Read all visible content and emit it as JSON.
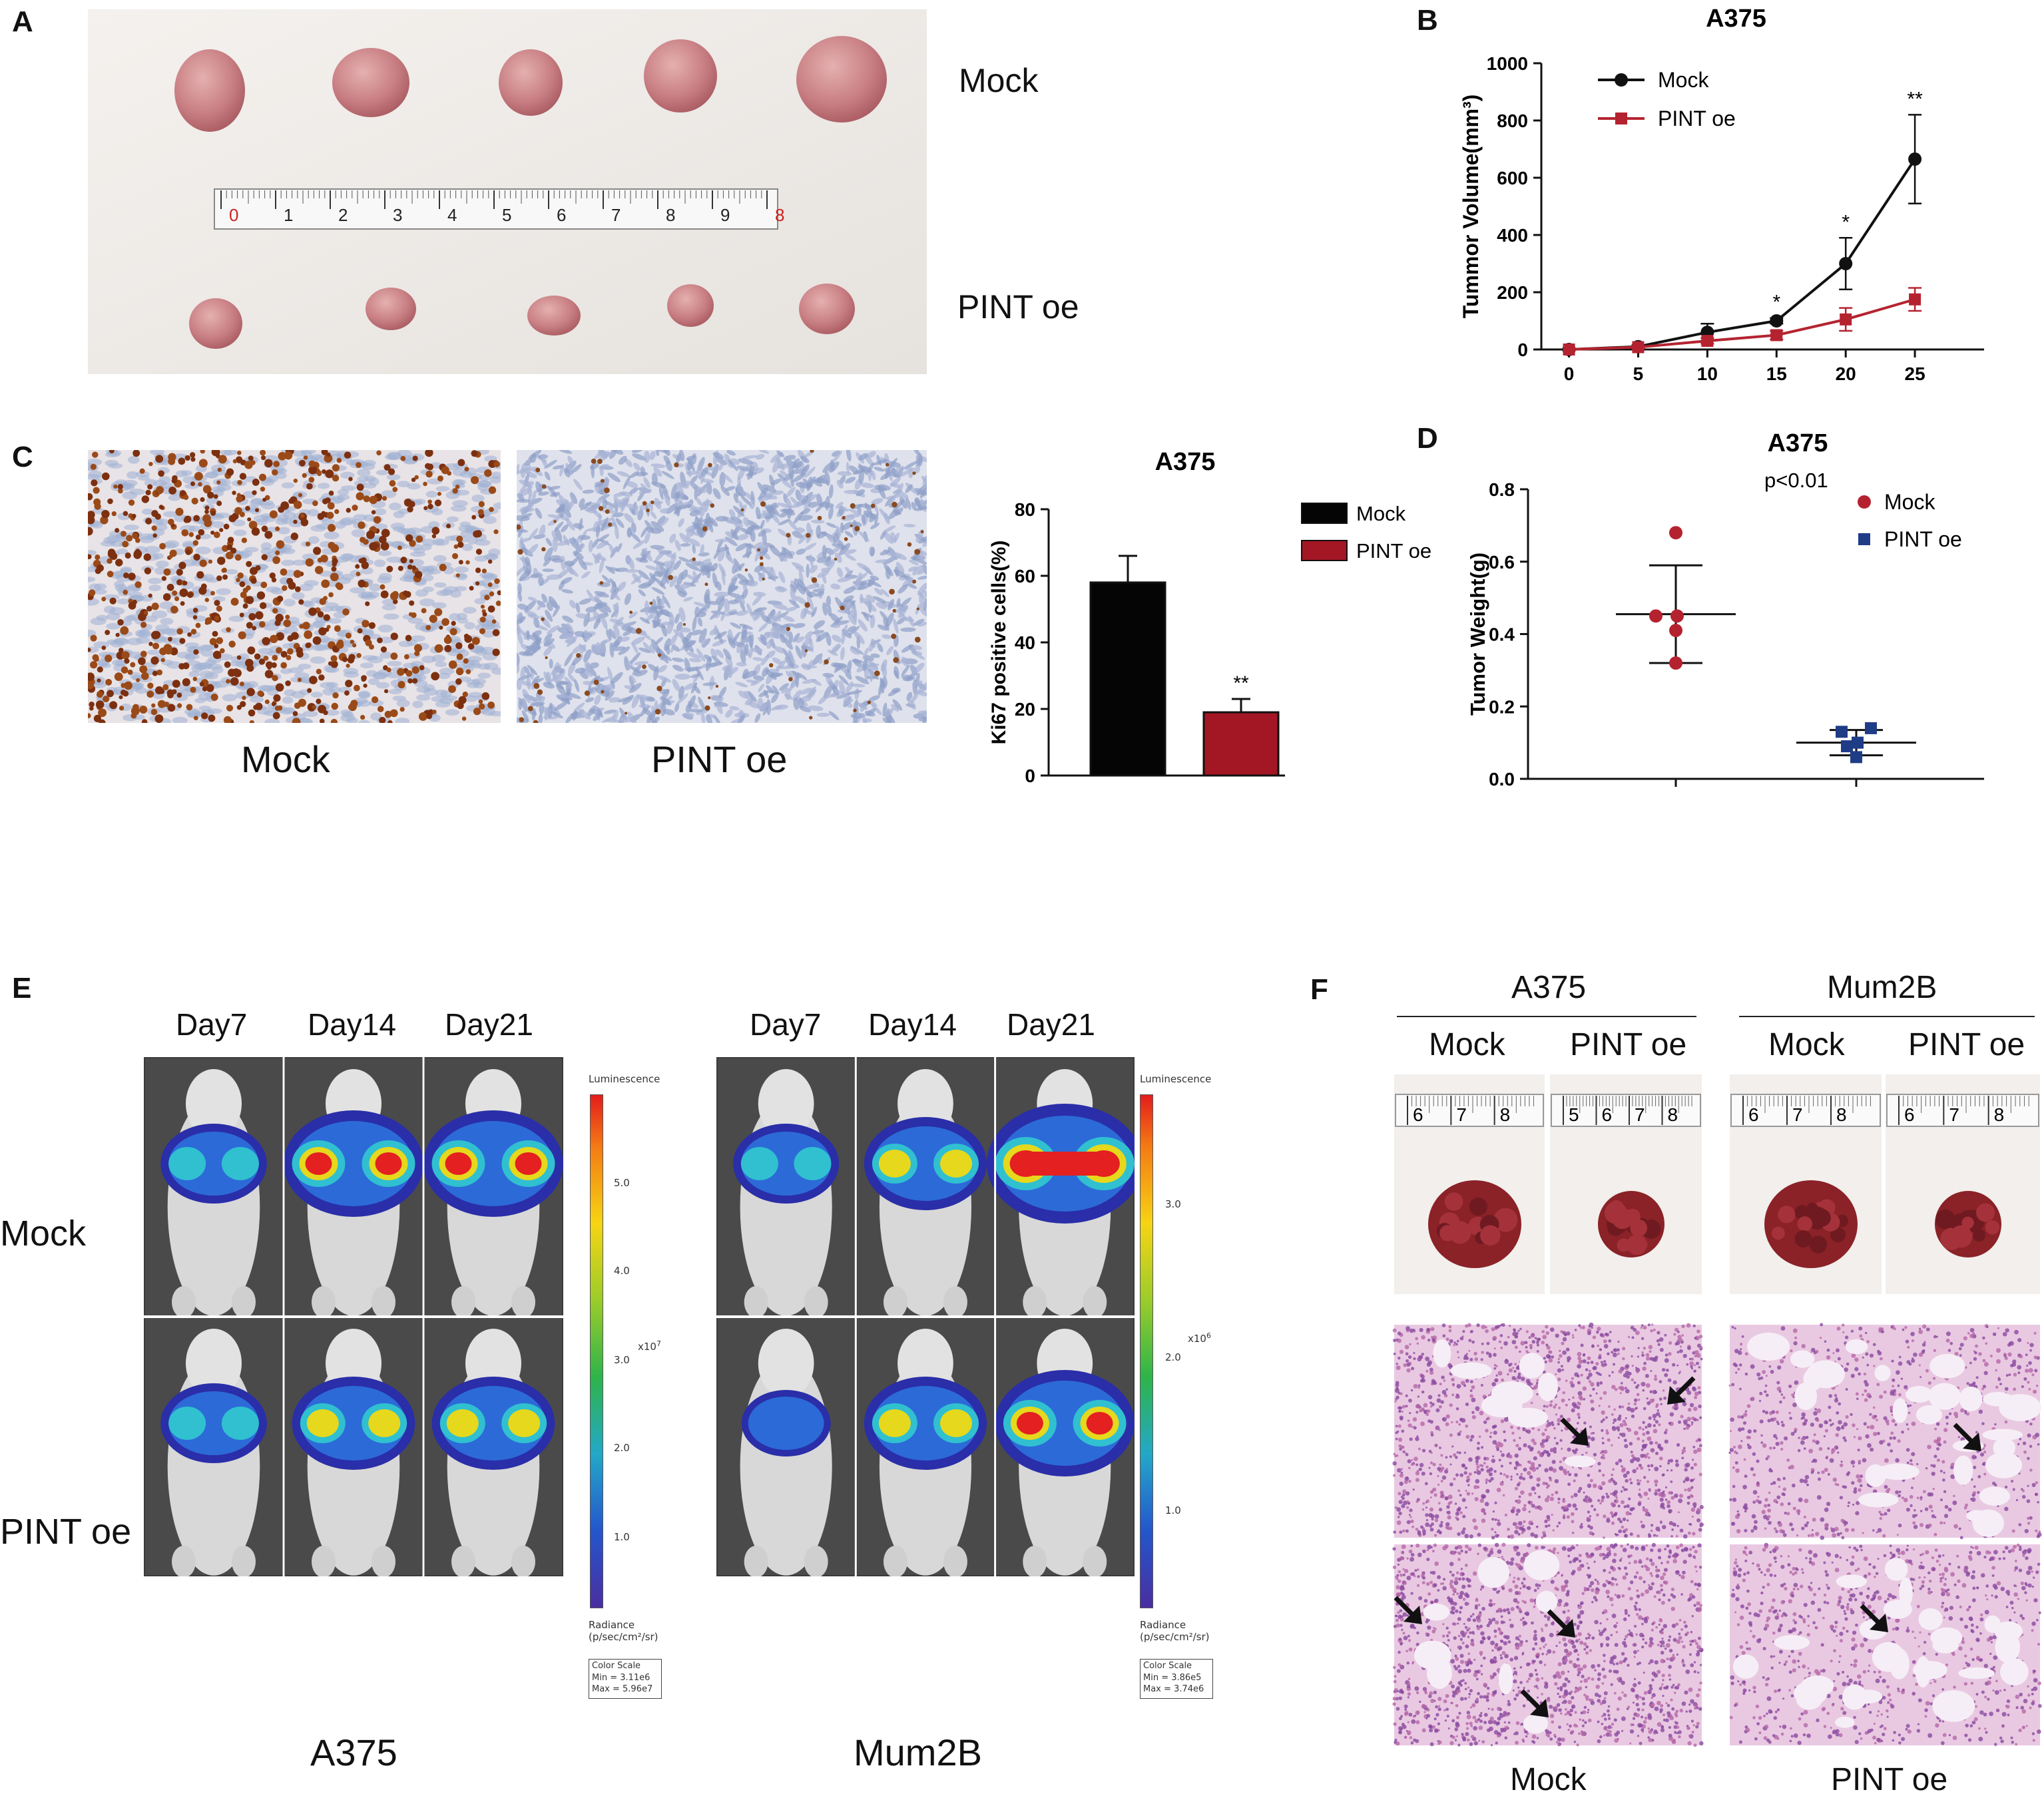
{
  "panels": {
    "A": {
      "label": "A",
      "row_labels": [
        "Mock",
        "PINT oe"
      ],
      "ruler_ticks": [
        "0",
        "1",
        "2",
        "3",
        "4",
        "5",
        "6",
        "7",
        "8",
        "9",
        "8"
      ]
    },
    "B": {
      "label": "B"
    },
    "C": {
      "label": "C",
      "captions": [
        "Mock",
        "PINT oe"
      ]
    },
    "D": {
      "label": "D",
      "pvalue": "p<0.01"
    },
    "E": {
      "label": "E",
      "groups": [
        {
          "name": "A375",
          "days": [
            "Day7",
            "Day14",
            "Day21"
          ],
          "colorbar": {
            "title": "Luminescence",
            "ticks": [
              "5.0",
              "4.0",
              "3.0",
              "2.0",
              "1.0"
            ],
            "exponent": "x10",
            "exp_power": "7",
            "units_line1": "Radiance",
            "units_line2": "(p/sec/cm²/sr)",
            "scale_title": "Color Scale",
            "scale_min": "Min = 3.11e6",
            "scale_max": "Max = 5.96e7"
          }
        },
        {
          "name": "Mum2B",
          "days": [
            "Day7",
            "Day14",
            "Day21"
          ],
          "colorbar": {
            "title": "Luminescence",
            "ticks": [
              "3.0",
              "2.0",
              "1.0"
            ],
            "exponent": "x10",
            "exp_power": "6",
            "units_line1": "Radiance",
            "units_line2": "(p/sec/cm²/sr)",
            "scale_title": "Color Scale",
            "scale_min": "Min = 3.86e5",
            "scale_max": "Max = 3.74e6"
          }
        }
      ],
      "row_labels": [
        "Mock",
        "PINT oe"
      ]
    },
    "F": {
      "label": "F",
      "groups": [
        "A375",
        "Mum2B"
      ],
      "sub": [
        "Mock",
        "PINT oe",
        "Mock",
        "PINT oe"
      ],
      "ruler_sets": [
        [
          "6",
          "7",
          "8"
        ],
        [
          "5",
          "6",
          "7",
          "8"
        ],
        [
          "6",
          "7",
          "8"
        ],
        [
          "6",
          "7",
          "8"
        ]
      ],
      "bottom_labels": [
        "Mock",
        "PINT oe"
      ]
    }
  },
  "colors": {
    "mock_line": "#111111",
    "pint_line": "#b52330",
    "mock_bar": "#050505",
    "pint_bar": "#a31624",
    "d_mock": "#b5222f",
    "d_pint": "#1f3c86",
    "tissue_bg": "#f0ece8",
    "tumor": "#cf8a8e",
    "ihc_brown": "#8a3c12",
    "ihc_blue": "#8ea2c9",
    "photo_dark": "#555555",
    "lung": "#8e2b30",
    "he_pink": "#c67bb0"
  },
  "chart_data": [
    {
      "panel": "B",
      "type": "line",
      "title": "A375",
      "xlabel": "",
      "ylabel": "Tummor Volume(mm³)",
      "x": [
        0,
        5,
        10,
        15,
        20,
        25
      ],
      "xlim": [
        -2,
        30
      ],
      "ylim": [
        0,
        1000
      ],
      "x_ticks": [
        "0",
        "5",
        "10",
        "15",
        "20",
        "25"
      ],
      "y_ticks": [
        "0",
        "200",
        "400",
        "600",
        "800",
        "1000"
      ],
      "series": [
        {
          "name": "Mock",
          "values": [
            0,
            10,
            60,
            100,
            300,
            665
          ],
          "errors": [
            0,
            5,
            30,
            10,
            90,
            155
          ]
        },
        {
          "name": "PINT oe",
          "values": [
            0,
            8,
            30,
            50,
            105,
            175
          ],
          "errors": [
            0,
            4,
            10,
            15,
            40,
            40
          ]
        }
      ],
      "annotations": [
        {
          "x": 15,
          "text": "*"
        },
        {
          "x": 20,
          "text": "*"
        },
        {
          "x": 25,
          "text": "**"
        }
      ],
      "legend": "top-left"
    },
    {
      "panel": "C",
      "type": "bar",
      "title": "A375",
      "xlabel": "",
      "ylabel": "Ki67 positive cells(%)",
      "categories": [
        "Mock",
        "PINT oe"
      ],
      "values": [
        58,
        19
      ],
      "errors": [
        8,
        4
      ],
      "ylim": [
        0,
        80
      ],
      "y_ticks": [
        "0",
        "20",
        "40",
        "60",
        "80"
      ],
      "annotations": [
        {
          "category": "PINT oe",
          "text": "**"
        }
      ],
      "legend": "right"
    },
    {
      "panel": "D",
      "type": "scatter",
      "title": "A375",
      "xlabel": "",
      "ylabel": "Tumor Weight(g)",
      "ylim": [
        0,
        0.8
      ],
      "y_ticks": [
        "0.0",
        "0.2",
        "0.4",
        "0.6",
        "0.8"
      ],
      "series": [
        {
          "name": "Mock",
          "values": [
            0.68,
            0.45,
            0.45,
            0.41,
            0.32
          ],
          "mean": 0.455,
          "sd_upper": 0.59,
          "sd_lower": 0.32
        },
        {
          "name": "PINT oe",
          "values": [
            0.13,
            0.14,
            0.1,
            0.09,
            0.06
          ],
          "mean": 0.1,
          "sd_upper": 0.135,
          "sd_lower": 0.065
        }
      ],
      "legend": "top-right"
    }
  ]
}
